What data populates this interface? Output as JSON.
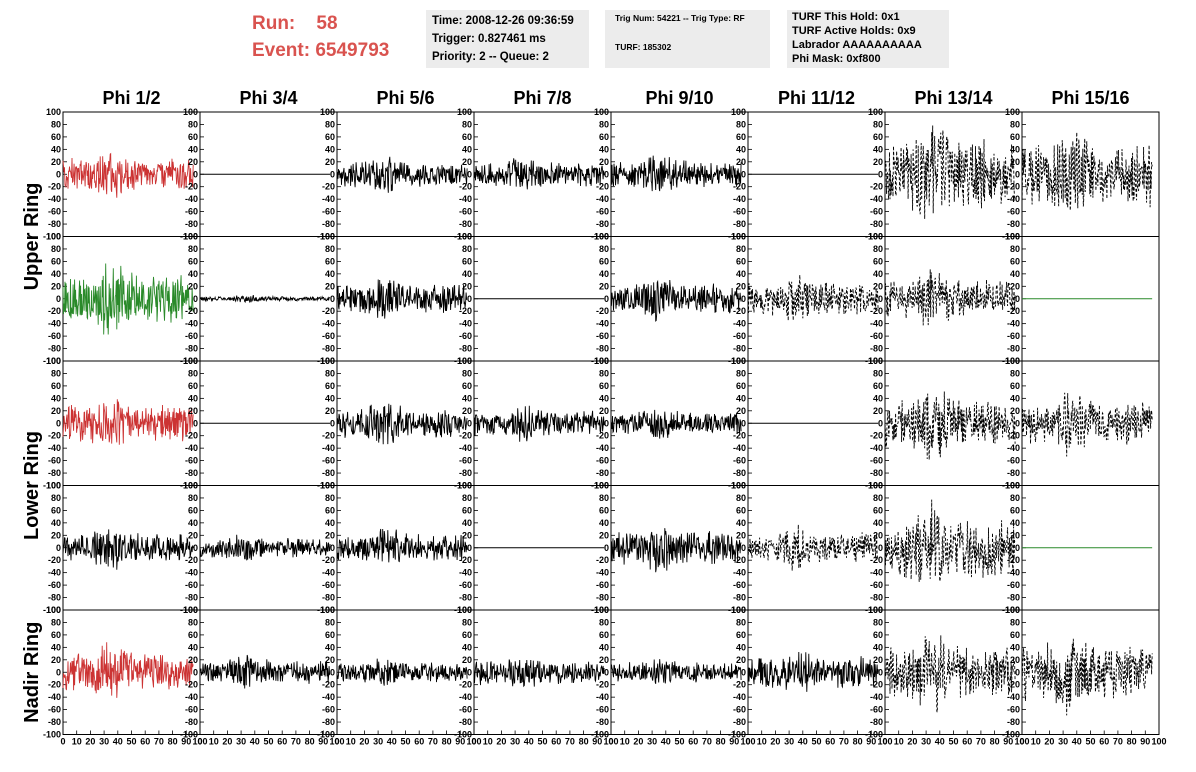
{
  "run_info": {
    "run_label": "Run:",
    "run_value": "58",
    "event_label": "Event:",
    "event_value": "6549793"
  },
  "info_box_time": {
    "time": "Time: 2008-12-26 09:36:59",
    "trigger": "Trigger: 0.827461 ms",
    "priority": "Priority: 2 -- Queue: 2"
  },
  "info_box_trig": {
    "trig": "Trig Num: 54221 -- Trig Type: RF",
    "turf": "TURF: 185302"
  },
  "info_box_turf": {
    "this_hold": "TURF This Hold: 0x1",
    "active_holds": "TURF Active Holds: 0x9",
    "labrador": "Labrador AAAAAAAAAA",
    "phi_mask": "Phi Mask: 0xf800"
  },
  "chart_data": {
    "type": "line",
    "columns": [
      "Phi 1/2",
      "Phi 3/4",
      "Phi 5/6",
      "Phi 7/8",
      "Phi 9/10",
      "Phi 11/12",
      "Phi 13/14",
      "Phi 15/16"
    ],
    "row_groups": [
      {
        "label": "Upper Ring",
        "rows": [
          0,
          1
        ]
      },
      {
        "label": "Lower Ring",
        "rows": [
          2,
          3
        ]
      },
      {
        "label": "Nadir Ring",
        "rows": [
          4
        ]
      }
    ],
    "xlim": [
      0,
      100
    ],
    "ylim": [
      -100,
      100
    ],
    "x_ticks": [
      0,
      10,
      20,
      30,
      40,
      50,
      60,
      70,
      80,
      90,
      100
    ],
    "y_ticks": [
      100,
      80,
      60,
      40,
      20,
      0,
      -20,
      -40,
      -60,
      -80,
      -100
    ],
    "x_samples": 260,
    "x_data_max": 95,
    "colors": {
      "red": "#cc3333",
      "green": "#2a8a2a",
      "black": "#000000"
    },
    "styles": {
      "R": {
        "color": "red",
        "dash": false
      },
      "G": {
        "color": "green",
        "dash": false
      },
      "K": {
        "color": "black",
        "dash": false
      },
      "D": {
        "color": "black",
        "dash": true
      },
      "F": {
        "color": "black",
        "dash": false
      },
      "FG": {
        "color": "green",
        "dash": false
      }
    },
    "panels": [
      [
        {
          "s": "R",
          "a": 20
        },
        {
          "s": "F",
          "a": 0
        },
        {
          "s": "K",
          "a": 16
        },
        {
          "s": "K",
          "a": 14
        },
        {
          "s": "K",
          "a": 16
        },
        {
          "s": "F",
          "a": 0
        },
        {
          "s": "D",
          "a": 42
        },
        {
          "s": "D",
          "a": 38
        }
      ],
      [
        {
          "s": "G",
          "a": 30
        },
        {
          "s": "K",
          "a": 3
        },
        {
          "s": "K",
          "a": 18
        },
        {
          "s": "F",
          "a": 0
        },
        {
          "s": "K",
          "a": 18
        },
        {
          "s": "D",
          "a": 20
        },
        {
          "s": "D",
          "a": 24
        },
        {
          "s": "FG",
          "a": 0
        }
      ],
      [
        {
          "s": "R",
          "a": 22
        },
        {
          "s": "F",
          "a": 0
        },
        {
          "s": "K",
          "a": 18
        },
        {
          "s": "K",
          "a": 15
        },
        {
          "s": "K",
          "a": 14
        },
        {
          "s": "F",
          "a": 0
        },
        {
          "s": "D",
          "a": 30
        },
        {
          "s": "D",
          "a": 26
        }
      ],
      [
        {
          "s": "K",
          "a": 18
        },
        {
          "s": "K",
          "a": 12
        },
        {
          "s": "K",
          "a": 17
        },
        {
          "s": "F",
          "a": 0
        },
        {
          "s": "K",
          "a": 20
        },
        {
          "s": "D",
          "a": 18
        },
        {
          "s": "D",
          "a": 38
        },
        {
          "s": "FG",
          "a": 0
        }
      ],
      [
        {
          "s": "R",
          "a": 24
        },
        {
          "s": "K",
          "a": 14
        },
        {
          "s": "K",
          "a": 12
        },
        {
          "s": "K",
          "a": 15
        },
        {
          "s": "K",
          "a": 12
        },
        {
          "s": "K",
          "a": 19
        },
        {
          "s": "D",
          "a": 32
        },
        {
          "s": "D",
          "a": 34
        }
      ]
    ]
  }
}
